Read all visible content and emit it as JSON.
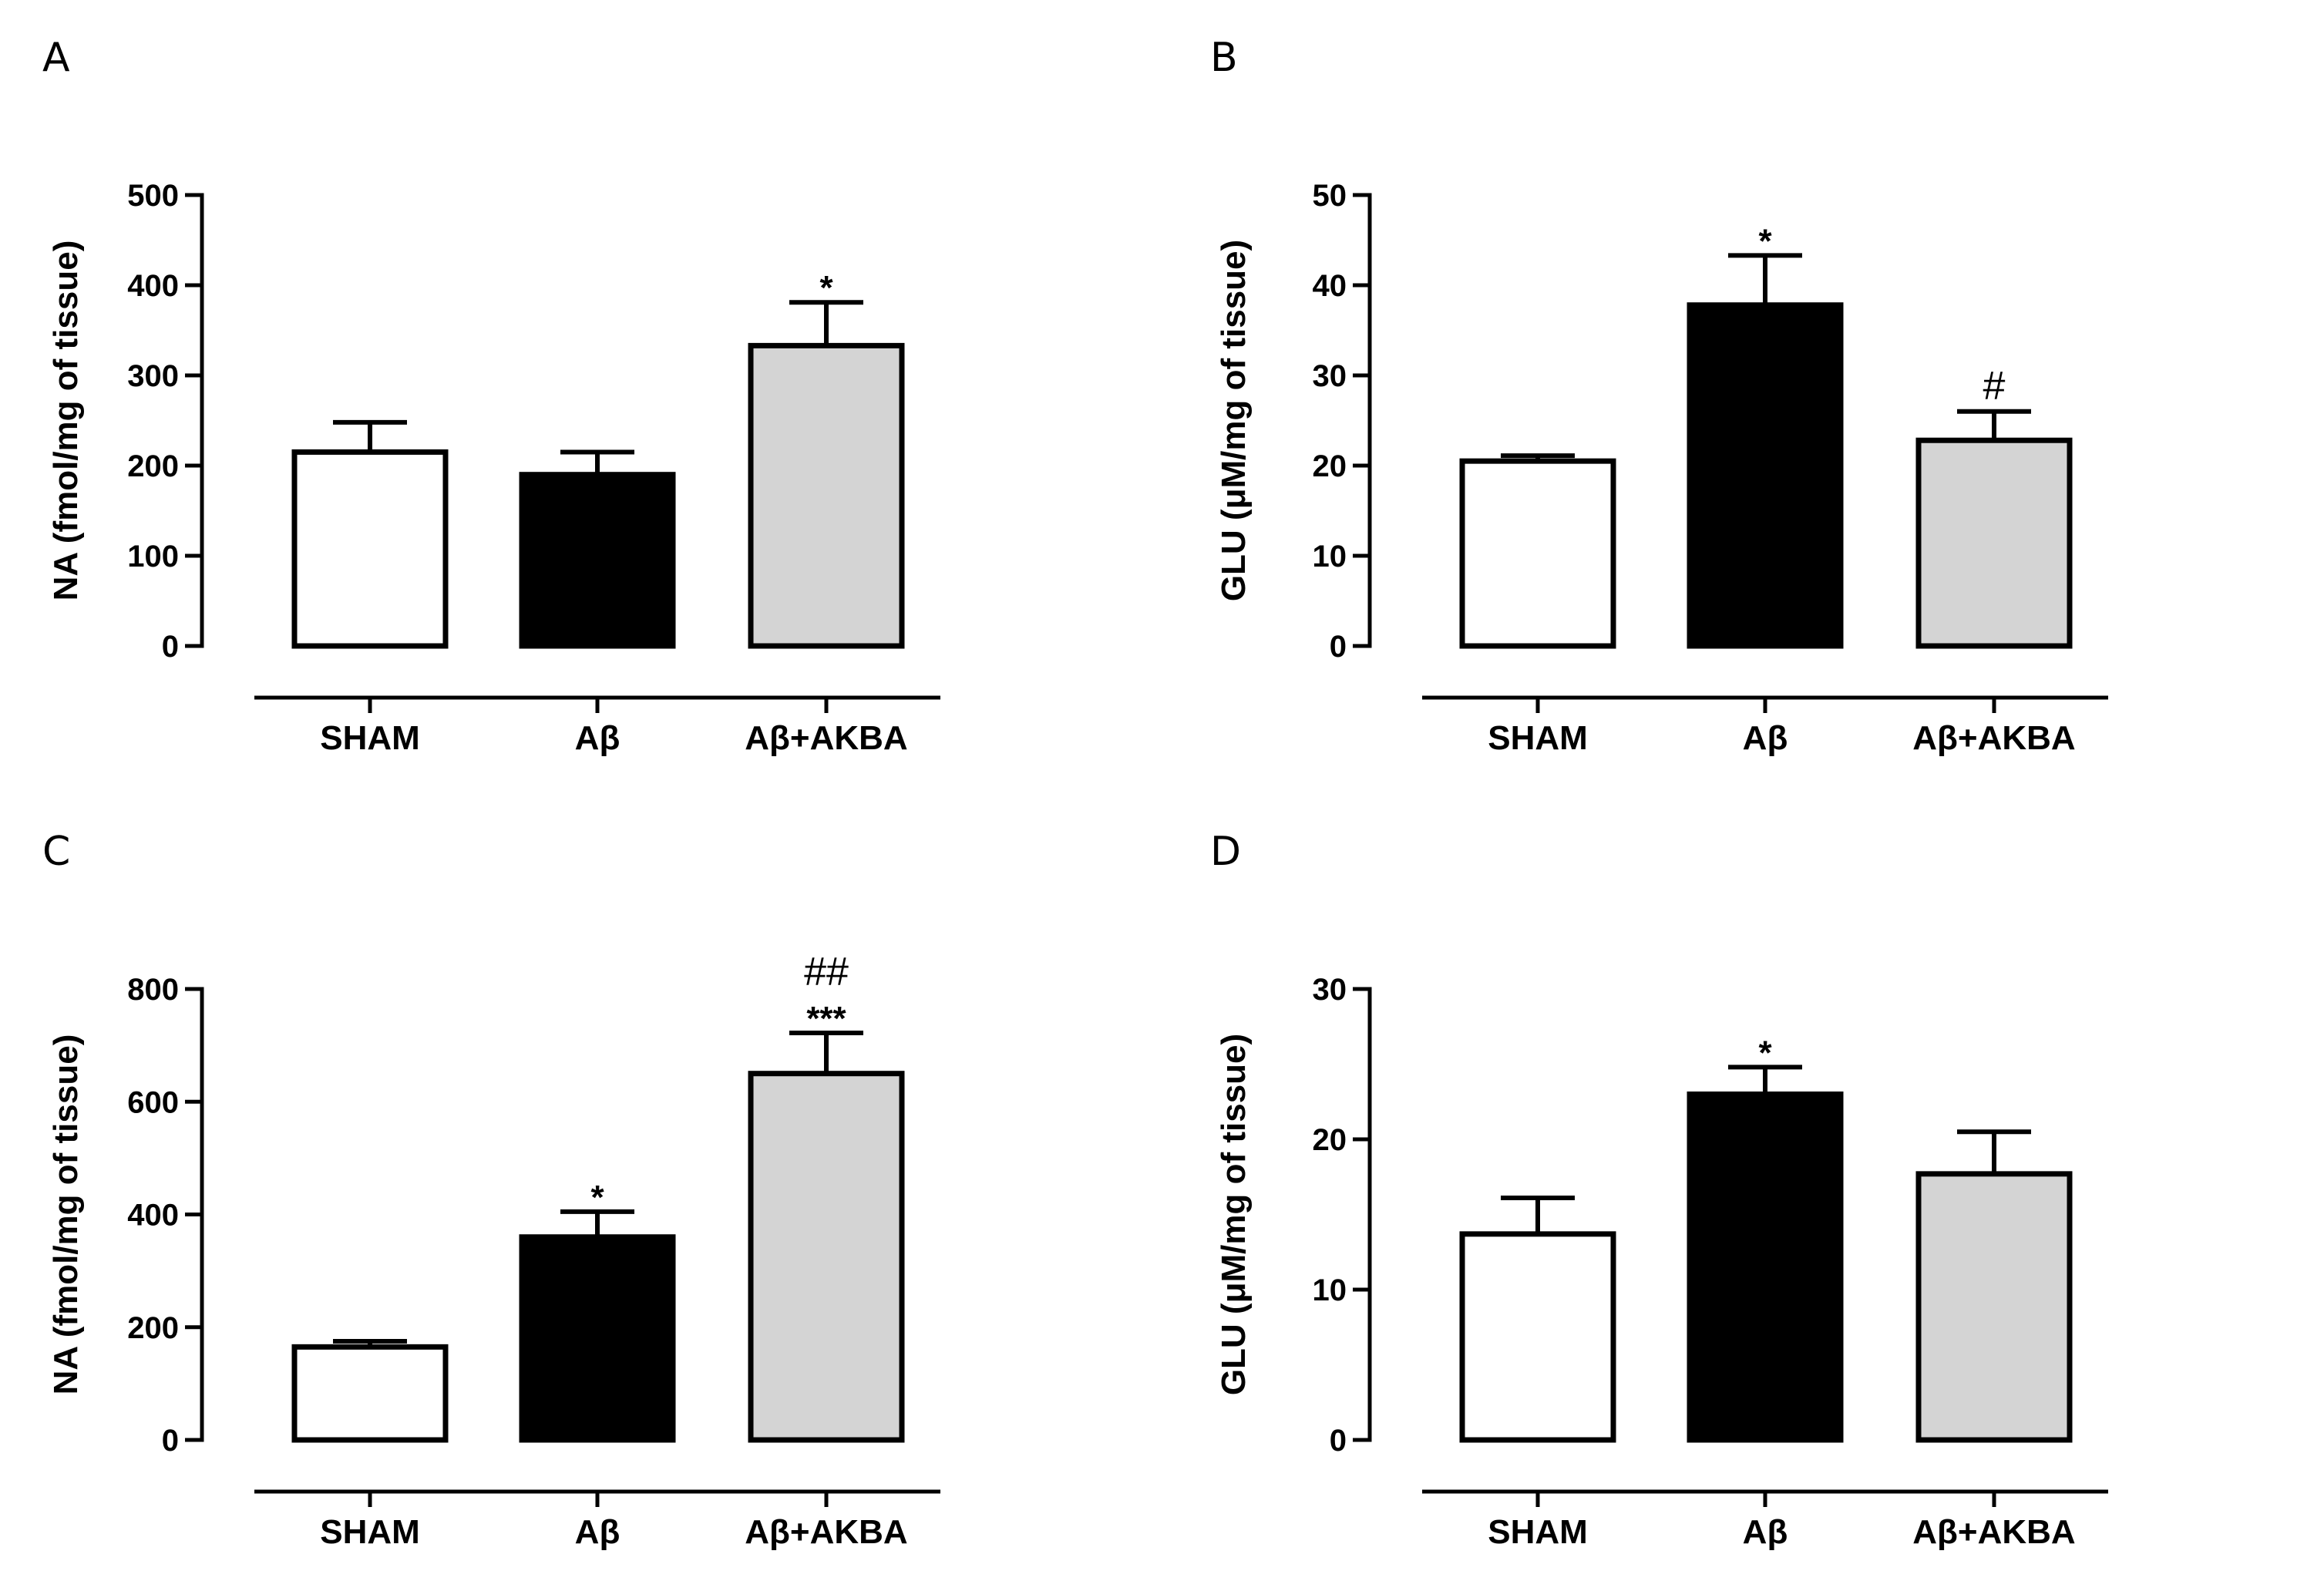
{
  "chart_data": [
    {
      "panel": "A",
      "type": "bar",
      "ylabel": "NA (fmol/mg of tissue)",
      "categories": [
        "SHAM",
        "Aβ",
        "Aβ+AKBA"
      ],
      "values": [
        215,
        190,
        333
      ],
      "errors": [
        33,
        25,
        48
      ],
      "significance": [
        "",
        "",
        "*"
      ],
      "fills": [
        "#ffffff",
        "#000000",
        "#d4d4d4"
      ],
      "ylim": [
        0,
        500
      ],
      "yticks": [
        "0",
        "100",
        "200",
        "300",
        "400",
        "500"
      ]
    },
    {
      "panel": "B",
      "type": "bar",
      "ylabel": "GLU (μM/mg of tissue)",
      "categories": [
        "SHAM",
        "Aβ",
        "Aβ+AKBA"
      ],
      "values": [
        20.5,
        37.8,
        22.8
      ],
      "errors": [
        0.6,
        5.5,
        3.2
      ],
      "significance": [
        "",
        "*",
        "#"
      ],
      "fills": [
        "#ffffff",
        "#000000",
        "#d4d4d4"
      ],
      "ylim": [
        0,
        50
      ],
      "yticks": [
        "0",
        "10",
        "20",
        "30",
        "40",
        "50"
      ]
    },
    {
      "panel": "C",
      "type": "bar",
      "ylabel": "NA (fmol/mg of tissue)",
      "categories": [
        "SHAM",
        "Aβ",
        "Aβ+AKBA"
      ],
      "values": [
        165,
        360,
        650
      ],
      "errors": [
        10,
        45,
        72
      ],
      "significance": [
        "",
        "*",
        "***"
      ],
      "significance2": [
        "",
        "",
        "##"
      ],
      "fills": [
        "#ffffff",
        "#000000",
        "#d4d4d4"
      ],
      "ylim": [
        0,
        800
      ],
      "yticks": [
        "0",
        "200",
        "400",
        "600",
        "800"
      ]
    },
    {
      "panel": "D",
      "type": "bar",
      "ylabel": "GLU (μM/mg of tissue)",
      "categories": [
        "SHAM",
        "Aβ",
        "Aβ+AKBA"
      ],
      "values": [
        13.7,
        23.0,
        17.7
      ],
      "errors": [
        2.4,
        1.8,
        2.8
      ],
      "significance": [
        "",
        "*",
        ""
      ],
      "fills": [
        "#ffffff",
        "#000000",
        "#d4d4d4"
      ],
      "ylim": [
        0,
        30
      ],
      "yticks": [
        "0",
        "10",
        "20",
        "30"
      ]
    }
  ],
  "colors": {
    "stroke": "#000000",
    "shaded": "#d4d4d4"
  }
}
